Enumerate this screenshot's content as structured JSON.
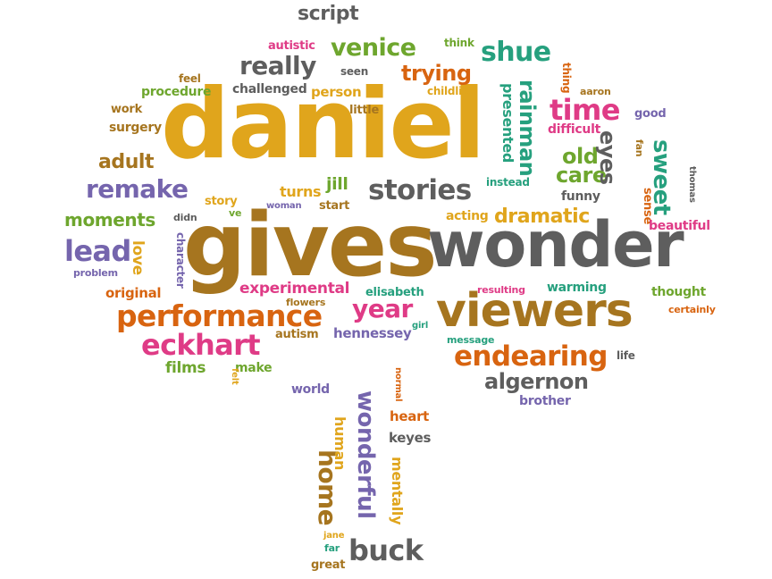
{
  "colors": {
    "gold": "#e0a51c",
    "brown": "#a6751f",
    "gray": "#5e5e5e",
    "green": "#6ea62e",
    "purple": "#7565ad",
    "orange": "#d86410",
    "pink": "#df3b86",
    "teal": "#26a07e"
  },
  "words": [
    {
      "text": "daniel",
      "color": "gold"
    },
    {
      "text": "gives",
      "color": "brown"
    },
    {
      "text": "wonder",
      "color": "gray"
    },
    {
      "text": "viewers",
      "color": "brown"
    },
    {
      "text": "performance",
      "color": "orange"
    },
    {
      "text": "endearing",
      "color": "orange"
    },
    {
      "text": "eckhart",
      "color": "pink"
    },
    {
      "text": "stories",
      "color": "gray"
    },
    {
      "text": "remake",
      "color": "purple"
    },
    {
      "text": "lead",
      "color": "purple"
    },
    {
      "text": "algernon",
      "color": "gray"
    },
    {
      "text": "venice",
      "color": "green"
    },
    {
      "text": "shue",
      "color": "teal"
    },
    {
      "text": "really",
      "color": "gray"
    },
    {
      "text": "time",
      "color": "pink"
    },
    {
      "text": "trying",
      "color": "orange"
    },
    {
      "text": "dramatic",
      "color": "gold"
    },
    {
      "text": "moments",
      "color": "green"
    },
    {
      "text": "adult",
      "color": "brown"
    },
    {
      "text": "year",
      "color": "pink"
    },
    {
      "text": "buck",
      "color": "gray"
    },
    {
      "text": "old",
      "color": "green"
    },
    {
      "text": "care",
      "color": "green"
    },
    {
      "text": "eyes",
      "color": "gray"
    },
    {
      "text": "sweet",
      "color": "teal"
    },
    {
      "text": "script",
      "color": "gray"
    },
    {
      "text": "rainman",
      "color": "teal"
    },
    {
      "text": "presented",
      "color": "teal"
    },
    {
      "text": "experimental",
      "color": "pink"
    },
    {
      "text": "wonderful",
      "color": "purple"
    },
    {
      "text": "home",
      "color": "brown"
    },
    {
      "text": "films",
      "color": "green"
    },
    {
      "text": "love",
      "color": "gold"
    },
    {
      "text": "original",
      "color": "orange"
    },
    {
      "text": "jill",
      "color": "green"
    },
    {
      "text": "turns",
      "color": "gold"
    },
    {
      "text": "autism",
      "color": "brown"
    },
    {
      "text": "make",
      "color": "green"
    },
    {
      "text": "hennessey",
      "color": "purple"
    },
    {
      "text": "person",
      "color": "gold"
    },
    {
      "text": "difficult",
      "color": "pink"
    },
    {
      "text": "surgery",
      "color": "brown"
    },
    {
      "text": "procedure",
      "color": "green"
    },
    {
      "text": "challenged",
      "color": "gray"
    },
    {
      "text": "autistic",
      "color": "pink"
    },
    {
      "text": "seen",
      "color": "gray"
    },
    {
      "text": "little",
      "color": "brown"
    },
    {
      "text": "childlike",
      "color": "gold"
    },
    {
      "text": "thing",
      "color": "orange"
    },
    {
      "text": "aaron",
      "color": "brown"
    },
    {
      "text": "good",
      "color": "purple"
    },
    {
      "text": "fan",
      "color": "brown"
    },
    {
      "text": "feel",
      "color": "brown"
    },
    {
      "text": "work",
      "color": "brown"
    },
    {
      "text": "think",
      "color": "green"
    },
    {
      "text": "ve",
      "color": "green"
    },
    {
      "text": "story",
      "color": "gold"
    },
    {
      "text": "woman",
      "color": "purple"
    },
    {
      "text": "start",
      "color": "brown"
    },
    {
      "text": "instead",
      "color": "teal"
    },
    {
      "text": "funny",
      "color": "gray"
    },
    {
      "text": "acting",
      "color": "gold"
    },
    {
      "text": "sense",
      "color": "orange"
    },
    {
      "text": "thomas",
      "color": "gray"
    },
    {
      "text": "beautiful",
      "color": "pink"
    },
    {
      "text": "didn",
      "color": "gray"
    },
    {
      "text": "problem",
      "color": "purple"
    },
    {
      "text": "character",
      "color": "purple"
    },
    {
      "text": "elisabeth",
      "color": "teal"
    },
    {
      "text": "flowers",
      "color": "brown"
    },
    {
      "text": "resulting",
      "color": "pink"
    },
    {
      "text": "warming",
      "color": "teal"
    },
    {
      "text": "thought",
      "color": "green"
    },
    {
      "text": "certainly",
      "color": "orange"
    },
    {
      "text": "message",
      "color": "teal"
    },
    {
      "text": "girl",
      "color": "teal"
    },
    {
      "text": "life",
      "color": "gray"
    },
    {
      "text": "felt",
      "color": "gold"
    },
    {
      "text": "world",
      "color": "purple"
    },
    {
      "text": "normal",
      "color": "orange"
    },
    {
      "text": "brother",
      "color": "purple"
    },
    {
      "text": "heart",
      "color": "orange"
    },
    {
      "text": "human",
      "color": "gold"
    },
    {
      "text": "keyes",
      "color": "gray"
    },
    {
      "text": "mentally",
      "color": "gold"
    },
    {
      "text": "jane",
      "color": "gold"
    },
    {
      "text": "far",
      "color": "teal"
    },
    {
      "text": "great",
      "color": "brown"
    }
  ]
}
